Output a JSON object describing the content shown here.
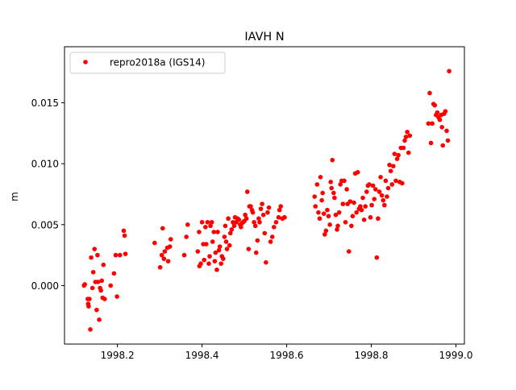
{
  "chart_data": {
    "type": "scatter",
    "title": "IAVH N",
    "xlabel": "",
    "ylabel": "m",
    "xlim": [
      1998.075,
      1999.02
    ],
    "ylim": [
      -0.0048,
      0.0196
    ],
    "x_ticks": [
      1998.2,
      1998.4,
      1998.6,
      1998.8,
      1999.0
    ],
    "x_tick_labels": [
      "1998.2",
      "1998.4",
      "1998.6",
      "1998.8",
      "1999.0"
    ],
    "y_ticks": [
      0.0,
      0.005,
      0.01,
      0.015
    ],
    "y_tick_labels": [
      "0.000",
      "0.005",
      "0.010",
      "0.015"
    ],
    "grid": false,
    "legend_position": "top-left",
    "series": [
      {
        "name": "repro2018a (IGS14)",
        "color": "#ff0000",
        "marker": "circle",
        "points": [
          [
            1998.121,
            0.0
          ],
          [
            1998.123,
            0.0001
          ],
          [
            1998.13,
            -0.0011
          ],
          [
            1998.131,
            -0.0015
          ],
          [
            1998.132,
            -0.0017
          ],
          [
            1998.134,
            -0.0011
          ],
          [
            1998.136,
            -0.0036
          ],
          [
            1998.138,
            0.0023
          ],
          [
            1998.141,
            -0.0002
          ],
          [
            1998.143,
            0.0011
          ],
          [
            1998.146,
            0.003
          ],
          [
            1998.148,
            0.0003
          ],
          [
            1998.151,
            -0.002
          ],
          [
            1998.153,
            0.0025
          ],
          [
            1998.154,
            0.0003
          ],
          [
            1998.157,
            -0.0028
          ],
          [
            1998.159,
            -0.0002
          ],
          [
            1998.161,
            -0.0004
          ],
          [
            1998.163,
            0.0004
          ],
          [
            1998.165,
            -0.001
          ],
          [
            1998.167,
            0.0017
          ],
          [
            1998.17,
            -0.0011
          ],
          [
            1998.184,
            0.0
          ],
          [
            1998.192,
            0.001
          ],
          [
            1998.196,
            0.0025
          ],
          [
            1998.199,
            -0.0009
          ],
          [
            1998.206,
            0.0025
          ],
          [
            1998.215,
            0.0045
          ],
          [
            1998.217,
            0.0041
          ],
          [
            1998.219,
            0.0026
          ],
          [
            1998.288,
            0.0035
          ],
          [
            1998.301,
            0.0015
          ],
          [
            1998.305,
            0.0025
          ],
          [
            1998.307,
            0.0047
          ],
          [
            1998.31,
            0.0022
          ],
          [
            1998.312,
            0.0028
          ],
          [
            1998.318,
            0.0031
          ],
          [
            1998.32,
            0.002
          ],
          [
            1998.324,
            0.0032
          ],
          [
            1998.326,
            0.0038
          ],
          [
            1998.358,
            0.0025
          ],
          [
            1998.363,
            0.004
          ],
          [
            1998.366,
            0.005
          ],
          [
            1998.39,
            0.0028
          ],
          [
            1998.393,
            0.0044
          ],
          [
            1998.394,
            0.0016
          ],
          [
            1998.397,
            0.0018
          ],
          [
            1998.4,
            0.0052
          ],
          [
            1998.403,
            0.0034
          ],
          [
            1998.405,
            0.0021
          ],
          [
            1998.408,
            0.0048
          ],
          [
            1998.41,
            0.0034
          ],
          [
            1998.413,
            0.0052
          ],
          [
            1998.416,
            0.0018
          ],
          [
            1998.418,
            0.0024
          ],
          [
            1998.42,
            0.0049
          ],
          [
            1998.423,
            0.0052
          ],
          [
            1998.425,
            0.0036
          ],
          [
            1998.428,
            0.0044
          ],
          [
            1998.43,
            0.002
          ],
          [
            1998.432,
            0.0027
          ],
          [
            1998.435,
            0.0013
          ],
          [
            1998.437,
            0.0044
          ],
          [
            1998.44,
            0.0029
          ],
          [
            1998.442,
            0.0032
          ],
          [
            1998.445,
            0.0018
          ],
          [
            1998.447,
            0.0024
          ],
          [
            1998.45,
            0.0022
          ],
          [
            1998.453,
            0.004
          ],
          [
            1998.455,
            0.0049
          ],
          [
            1998.457,
            0.0036
          ],
          [
            1998.459,
            0.003
          ],
          [
            1998.462,
            0.0055
          ],
          [
            1998.465,
            0.0033
          ],
          [
            1998.467,
            0.0043
          ],
          [
            1998.47,
            0.0046
          ],
          [
            1998.473,
            0.0052
          ],
          [
            1998.476,
            0.0049
          ],
          [
            1998.478,
            0.0056
          ],
          [
            1998.481,
            0.0052
          ],
          [
            1998.484,
            0.0055
          ],
          [
            1998.487,
            0.0054
          ],
          [
            1998.49,
            0.005
          ],
          [
            1998.492,
            0.0048
          ],
          [
            1998.494,
            0.0051
          ],
          [
            1998.497,
            0.0052
          ],
          [
            1998.5,
            0.0053
          ],
          [
            1998.502,
            0.0058
          ],
          [
            1998.505,
            0.0055
          ],
          [
            1998.507,
            0.0077
          ],
          [
            1998.51,
            0.003
          ],
          [
            1998.512,
            0.0065
          ],
          [
            1998.515,
            0.0065
          ],
          [
            1998.518,
            0.0062
          ],
          [
            1998.52,
            0.006
          ],
          [
            1998.523,
            0.0052
          ],
          [
            1998.526,
            0.0049
          ],
          [
            1998.528,
            0.0027
          ],
          [
            1998.531,
            0.0037
          ],
          [
            1998.534,
            0.0055
          ],
          [
            1998.536,
            0.0052
          ],
          [
            1998.539,
            0.0063
          ],
          [
            1998.542,
            0.0067
          ],
          [
            1998.545,
            0.0058
          ],
          [
            1998.548,
            0.0043
          ],
          [
            1998.551,
            0.0019
          ],
          [
            1998.555,
            0.006
          ],
          [
            1998.558,
            0.0064
          ],
          [
            1998.562,
            0.0036
          ],
          [
            1998.566,
            0.004
          ],
          [
            1998.57,
            0.0048
          ],
          [
            1998.575,
            0.0052
          ],
          [
            1998.581,
            0.0056
          ],
          [
            1998.583,
            0.0062
          ],
          [
            1998.586,
            0.0065
          ],
          [
            1998.59,
            0.0055
          ],
          [
            1998.595,
            0.0056
          ],
          [
            1998.666,
            0.0073
          ],
          [
            1998.668,
            0.0065
          ],
          [
            1998.672,
            0.0083
          ],
          [
            1998.675,
            0.006
          ],
          [
            1998.678,
            0.0055
          ],
          [
            1998.68,
            0.0089
          ],
          [
            1998.683,
            0.007
          ],
          [
            1998.685,
            0.0076
          ],
          [
            1998.688,
            0.0059
          ],
          [
            1998.69,
            0.0042
          ],
          [
            1998.693,
            0.0045
          ],
          [
            1998.696,
            0.0062
          ],
          [
            1998.699,
            0.0057
          ],
          [
            1998.702,
            0.005
          ],
          [
            1998.704,
            0.0085
          ],
          [
            1998.706,
            0.008
          ],
          [
            1998.708,
            0.0103
          ],
          [
            1998.711,
            0.0076
          ],
          [
            1998.713,
            0.0072
          ],
          [
            1998.716,
            0.0058
          ],
          [
            1998.719,
            0.0046
          ],
          [
            1998.721,
            0.0049
          ],
          [
            1998.724,
            0.006
          ],
          [
            1998.727,
            0.0083
          ],
          [
            1998.73,
            0.0086
          ],
          [
            1998.733,
            0.0067
          ],
          [
            1998.736,
            0.0086
          ],
          [
            1998.739,
            0.0052
          ],
          [
            1998.742,
            0.0079
          ],
          [
            1998.744,
            0.0067
          ],
          [
            1998.747,
            0.0028
          ],
          [
            1998.75,
            0.0069
          ],
          [
            1998.753,
            0.0049
          ],
          [
            1998.756,
            0.0057
          ],
          [
            1998.759,
            0.0068
          ],
          [
            1998.762,
            0.0092
          ],
          [
            1998.765,
            0.006
          ],
          [
            1998.768,
            0.0093
          ],
          [
            1998.771,
            0.0063
          ],
          [
            1998.774,
            0.0065
          ],
          [
            1998.777,
            0.0062
          ],
          [
            1998.78,
            0.0072
          ],
          [
            1998.783,
            0.0054
          ],
          [
            1998.786,
            0.0065
          ],
          [
            1998.789,
            0.0077
          ],
          [
            1998.792,
            0.0082
          ],
          [
            1998.795,
            0.0083
          ],
          [
            1998.798,
            0.0056
          ],
          [
            1998.801,
            0.0066
          ],
          [
            1998.804,
            0.0082
          ],
          [
            1998.807,
            0.0071
          ],
          [
            1998.81,
            0.0079
          ],
          [
            1998.813,
            0.0023
          ],
          [
            1998.816,
            0.0055
          ],
          [
            1998.819,
            0.0077
          ],
          [
            1998.822,
            0.0089
          ],
          [
            1998.825,
            0.0074
          ],
          [
            1998.828,
            0.007
          ],
          [
            1998.831,
            0.0066
          ],
          [
            1998.834,
            0.0086
          ],
          [
            1998.837,
            0.0073
          ],
          [
            1998.84,
            0.008
          ],
          [
            1998.843,
            0.0099
          ],
          [
            1998.846,
            0.0094
          ],
          [
            1998.849,
            0.0083
          ],
          [
            1998.852,
            0.0098
          ],
          [
            1998.855,
            0.0108
          ],
          [
            1998.858,
            0.0086
          ],
          [
            1998.861,
            0.0104
          ],
          [
            1998.864,
            0.0107
          ],
          [
            1998.867,
            0.0085
          ],
          [
            1998.87,
            0.0113
          ],
          [
            1998.873,
            0.0084
          ],
          [
            1998.876,
            0.0113
          ],
          [
            1998.879,
            0.0119
          ],
          [
            1998.882,
            0.0122
          ],
          [
            1998.885,
            0.0126
          ],
          [
            1998.888,
            0.0109
          ],
          [
            1998.891,
            0.0123
          ],
          [
            1998.935,
            0.0133
          ],
          [
            1998.938,
            0.0158
          ],
          [
            1998.941,
            0.0117
          ],
          [
            1998.944,
            0.0133
          ],
          [
            1998.947,
            0.0149
          ],
          [
            1998.95,
            0.0148
          ],
          [
            1998.953,
            0.014
          ],
          [
            1998.956,
            0.0142
          ],
          [
            1998.959,
            0.0138
          ],
          [
            1998.962,
            0.0136
          ],
          [
            1998.965,
            0.014
          ],
          [
            1998.967,
            0.013
          ],
          [
            1998.969,
            0.0115
          ],
          [
            1998.972,
            0.0141
          ],
          [
            1998.975,
            0.0143
          ],
          [
            1998.978,
            0.0127
          ],
          [
            1998.981,
            0.0119
          ],
          [
            1998.984,
            0.0176
          ]
        ]
      }
    ]
  }
}
